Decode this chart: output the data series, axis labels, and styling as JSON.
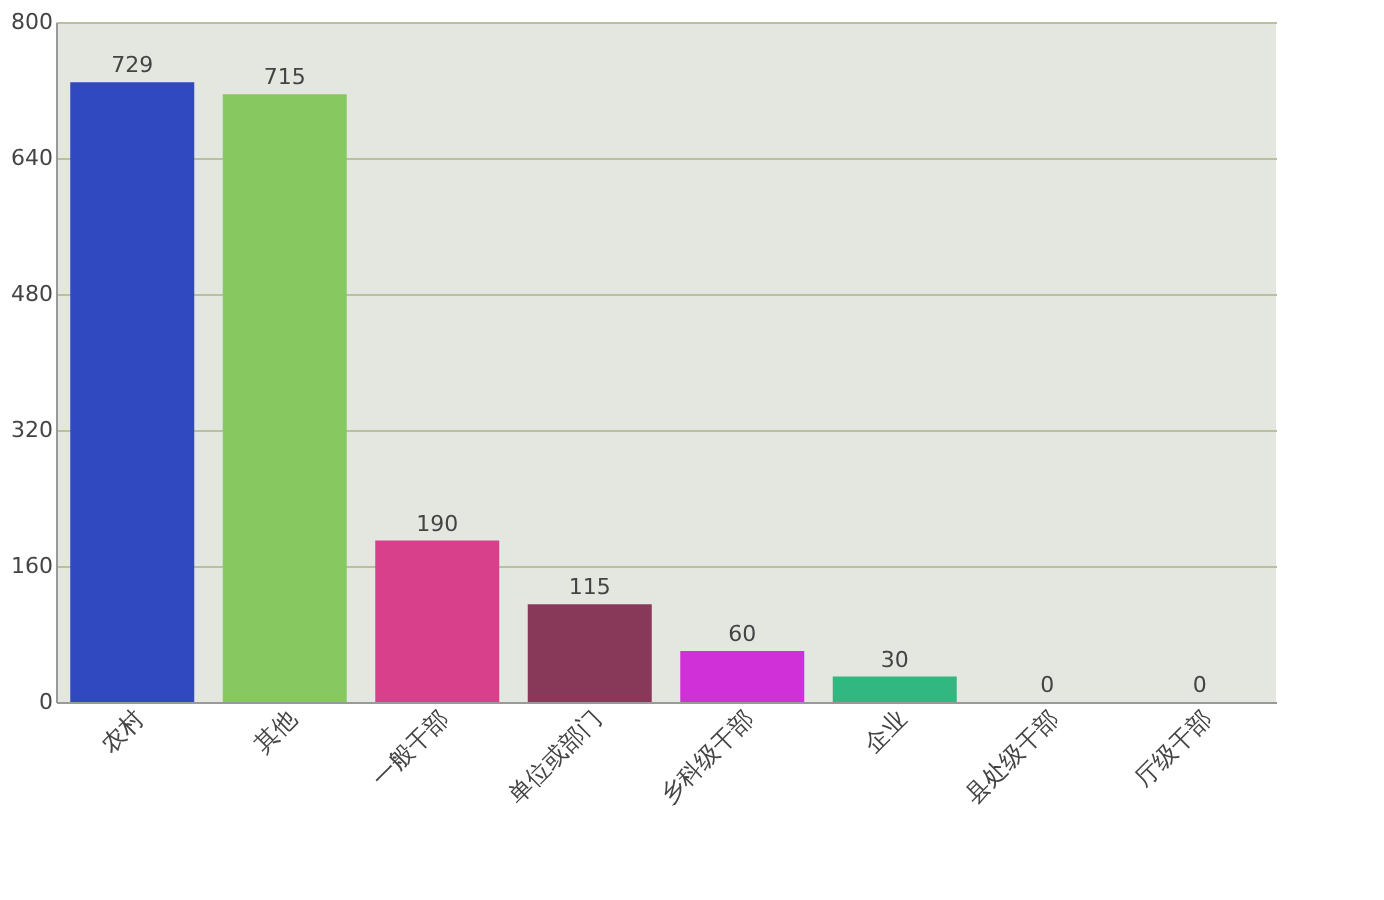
{
  "chart_data": {
    "type": "bar",
    "categories": [
      "农村",
      "其他",
      "一般干部",
      "单位或部门",
      "乡科级干部",
      "企业",
      "县处级干部",
      "厅级干部"
    ],
    "values": [
      729,
      715,
      190,
      115,
      60,
      30,
      0,
      0
    ],
    "colors": [
      "#3048c0",
      "#88c860",
      "#d8408c",
      "#883858",
      "#d030d8",
      "#30b880",
      "#a88888",
      "#68b030"
    ],
    "ylim": [
      0,
      800
    ],
    "yticks": [
      0,
      160,
      320,
      480,
      640,
      800
    ],
    "grid": "y",
    "data_labels": true
  }
}
